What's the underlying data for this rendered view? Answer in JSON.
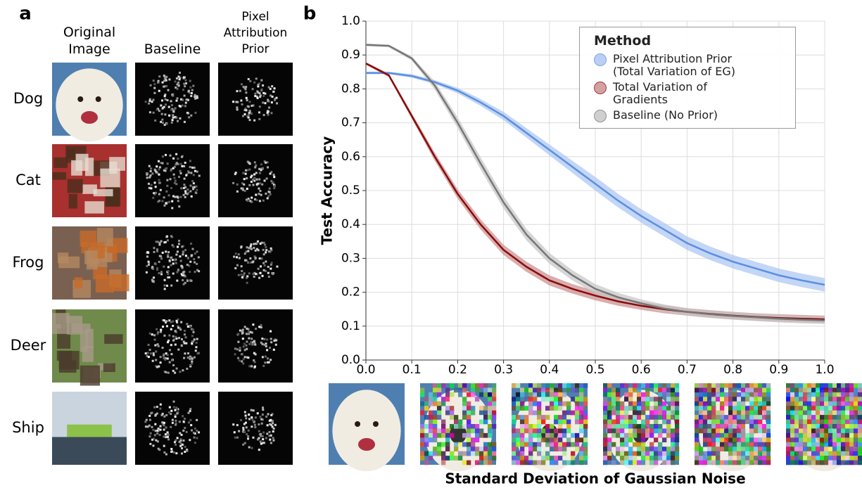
{
  "panel_a": {
    "label": "a",
    "columns": [
      "Original Image",
      "Baseline",
      "Pixel Attribution Prior"
    ],
    "rows": [
      "Dog",
      "Cat",
      "Frog",
      "Deer",
      "Ship"
    ]
  },
  "chart_data": {
    "type": "line",
    "panel_label": "b",
    "x_label": "Standard Deviation of Gaussian Noise",
    "y_label": "Test Accuracy",
    "legend_title": "Method",
    "legend": "top-right",
    "grid": true,
    "xlim": [
      0,
      1
    ],
    "ylim": [
      0,
      1
    ],
    "xticks": [
      {
        "value": 0,
        "label": "0.0"
      },
      {
        "value": 0.1,
        "label": "0.1"
      },
      {
        "value": 0.2,
        "label": "0.2"
      },
      {
        "value": 0.3,
        "label": "0.3"
      },
      {
        "value": 0.4,
        "label": "0.4"
      },
      {
        "value": 0.5,
        "label": "0.5"
      },
      {
        "value": 0.6,
        "label": "0.6"
      },
      {
        "value": 0.7,
        "label": "0.7"
      },
      {
        "value": 0.8,
        "label": "0.8"
      },
      {
        "value": 0.9,
        "label": "0.9"
      },
      {
        "value": 1,
        "label": "1.0"
      }
    ],
    "yticks": [
      {
        "value": 0,
        "label": "0.0"
      },
      {
        "value": 0.1,
        "label": "0.1"
      },
      {
        "value": 0.2,
        "label": "0.2"
      },
      {
        "value": 0.3,
        "label": "0.3"
      },
      {
        "value": 0.4,
        "label": "0.4"
      },
      {
        "value": 0.5,
        "label": "0.5"
      },
      {
        "value": 0.6,
        "label": "0.6"
      },
      {
        "value": 0.7,
        "label": "0.7"
      },
      {
        "value": 0.8,
        "label": "0.8"
      },
      {
        "value": 0.9,
        "label": "0.9"
      },
      {
        "value": 1,
        "label": "1.0"
      }
    ],
    "x": [
      0,
      0.05,
      0.1,
      0.15,
      0.2,
      0.25,
      0.3,
      0.35,
      0.4,
      0.45,
      0.5,
      0.55,
      0.6,
      0.65,
      0.7,
      0.75,
      0.8,
      0.85,
      0.9,
      0.95,
      1
    ],
    "series": [
      {
        "name": "Pixel Attribution Prior (Total Variation of EG)",
        "color": "#5b8fe0",
        "band_color": "#a9c4f2",
        "values": [
          0.847,
          0.847,
          0.838,
          0.82,
          0.795,
          0.76,
          0.72,
          0.67,
          0.62,
          0.57,
          0.52,
          0.47,
          0.425,
          0.385,
          0.345,
          0.315,
          0.29,
          0.27,
          0.25,
          0.235,
          0.222
        ],
        "errors": [
          0.004,
          0.004,
          0.005,
          0.006,
          0.008,
          0.01,
          0.012,
          0.014,
          0.016,
          0.018,
          0.02,
          0.02,
          0.02,
          0.02,
          0.02,
          0.02,
          0.02,
          0.02,
          0.02,
          0.02,
          0.02
        ]
      },
      {
        "name": "Total Variation of Gradients",
        "color": "#8b0a0a",
        "band_color": "#c98a8a",
        "values": [
          0.875,
          0.84,
          0.72,
          0.6,
          0.49,
          0.4,
          0.325,
          0.275,
          0.235,
          0.21,
          0.19,
          0.173,
          0.16,
          0.15,
          0.142,
          0.136,
          0.131,
          0.127,
          0.124,
          0.122,
          0.12
        ],
        "errors": [
          0.004,
          0.005,
          0.008,
          0.012,
          0.014,
          0.015,
          0.015,
          0.015,
          0.015,
          0.014,
          0.014,
          0.013,
          0.012,
          0.012,
          0.011,
          0.011,
          0.011,
          0.011,
          0.011,
          0.011,
          0.011
        ]
      },
      {
        "name": "Baseline (No Prior)",
        "color": "#777777",
        "band_color": "#c4c4c4",
        "values": [
          0.93,
          0.927,
          0.89,
          0.81,
          0.7,
          0.58,
          0.465,
          0.37,
          0.3,
          0.25,
          0.21,
          0.185,
          0.167,
          0.152,
          0.142,
          0.135,
          0.13,
          0.126,
          0.122,
          0.119,
          0.117
        ],
        "errors": [
          0.004,
          0.004,
          0.006,
          0.012,
          0.016,
          0.018,
          0.018,
          0.017,
          0.016,
          0.015,
          0.014,
          0.013,
          0.012,
          0.012,
          0.011,
          0.011,
          0.011,
          0.011,
          0.011,
          0.011,
          0.011
        ]
      }
    ]
  }
}
